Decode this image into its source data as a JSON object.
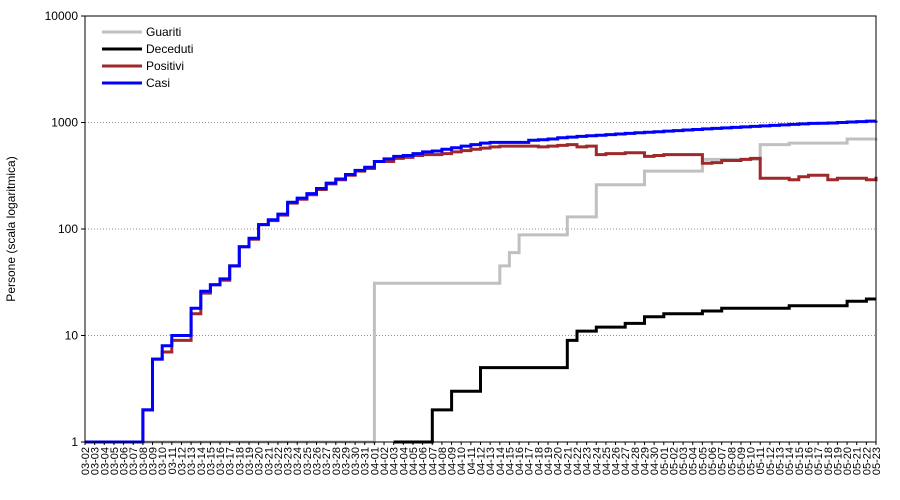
{
  "chart_data": {
    "type": "line",
    "title": "",
    "xlabel": "",
    "ylabel": "Persone (scala logaritmica)",
    "yscale": "log",
    "ylim": [
      1,
      10000
    ],
    "y_ticks": [
      "1",
      "10",
      "100",
      "1000",
      "10000"
    ],
    "grid": "horizontal dotted",
    "legend_position": "top-left",
    "x": [
      "03-02",
      "03-03",
      "03-04",
      "03-05",
      "03-06",
      "03-07",
      "03-08",
      "03-09",
      "03-10",
      "03-11",
      "03-12",
      "03-13",
      "03-14",
      "03-15",
      "03-16",
      "03-17",
      "03-18",
      "03-19",
      "03-20",
      "03-21",
      "03-22",
      "03-23",
      "03-24",
      "03-25",
      "03-26",
      "03-27",
      "03-28",
      "03-29",
      "03-30",
      "03-31",
      "04-01",
      "04-02",
      "04-03",
      "04-04",
      "04-05",
      "04-06",
      "04-07",
      "04-08",
      "04-09",
      "04-10",
      "04-11",
      "04-12",
      "04-13",
      "04-14",
      "04-15",
      "04-16",
      "04-17",
      "04-18",
      "04-19",
      "04-20",
      "04-21",
      "04-22",
      "04-23",
      "04-24",
      "04-25",
      "04-26",
      "04-27",
      "04-28",
      "04-29",
      "04-30",
      "05-01",
      "05-02",
      "05-03",
      "05-04",
      "05-05",
      "05-06",
      "05-07",
      "05-08",
      "05-09",
      "05-10",
      "05-11",
      "05-12",
      "05-13",
      "05-14",
      "05-15",
      "05-16",
      "05-17",
      "05-18",
      "05-19",
      "05-20",
      "05-21",
      "05-22",
      "05-23"
    ],
    "series": [
      {
        "name": "Guariti",
        "color": "#c0c0c0",
        "values": [
          1,
          1,
          1,
          1,
          1,
          1,
          1,
          1,
          1,
          1,
          1,
          1,
          1,
          1,
          1,
          1,
          1,
          1,
          1,
          1,
          1,
          1,
          1,
          1,
          1,
          1,
          1,
          1,
          1,
          1,
          31,
          31,
          31,
          31,
          31,
          31,
          31,
          31,
          31,
          31,
          31,
          31,
          31,
          45,
          60,
          88,
          88,
          88,
          88,
          88,
          130,
          130,
          130,
          260,
          260,
          260,
          260,
          260,
          350,
          350,
          350,
          350,
          350,
          350,
          450,
          450,
          450,
          450,
          450,
          450,
          620,
          620,
          620,
          640,
          640,
          640,
          640,
          640,
          640,
          700,
          700,
          700,
          710
        ]
      },
      {
        "name": "Deceduti",
        "color": "#000000",
        "values": [
          null,
          null,
          null,
          null,
          null,
          null,
          null,
          null,
          null,
          null,
          null,
          null,
          null,
          null,
          null,
          null,
          null,
          null,
          null,
          null,
          null,
          null,
          null,
          null,
          null,
          null,
          null,
          null,
          null,
          null,
          null,
          null,
          1,
          1,
          1,
          1,
          2,
          2,
          3,
          3,
          3,
          5,
          5,
          5,
          5,
          5,
          5,
          5,
          5,
          5,
          9,
          11,
          11,
          12,
          12,
          12,
          13,
          13,
          15,
          15,
          16,
          16,
          16,
          16,
          17,
          17,
          18,
          18,
          18,
          18,
          18,
          18,
          18,
          19,
          19,
          19,
          19,
          19,
          19,
          21,
          21,
          22,
          22
        ]
      },
      {
        "name": "Positivi",
        "color": "#a0282a",
        "values": [
          1,
          1,
          1,
          1,
          1,
          1,
          2,
          6,
          7,
          9,
          9,
          16,
          25,
          30,
          33,
          45,
          68,
          80,
          110,
          120,
          135,
          175,
          190,
          210,
          235,
          265,
          290,
          320,
          350,
          370,
          430,
          430,
          460,
          470,
          490,
          500,
          500,
          510,
          530,
          545,
          560,
          575,
          590,
          600,
          600,
          600,
          600,
          590,
          600,
          610,
          620,
          590,
          600,
          500,
          510,
          510,
          520,
          520,
          480,
          490,
          500,
          500,
          500,
          500,
          415,
          420,
          440,
          440,
          450,
          460,
          300,
          300,
          300,
          290,
          310,
          320,
          320,
          290,
          300,
          300,
          300,
          290,
          310
        ]
      },
      {
        "name": "Casi",
        "color": "#0000ff",
        "values": [
          1,
          1,
          1,
          1,
          1,
          1,
          2,
          6,
          8,
          10,
          10,
          18,
          26,
          30,
          34,
          45,
          68,
          82,
          110,
          122,
          138,
          178,
          195,
          215,
          240,
          270,
          295,
          325,
          355,
          380,
          430,
          455,
          480,
          490,
          510,
          530,
          540,
          560,
          580,
          600,
          620,
          640,
          650,
          650,
          650,
          650,
          680,
          690,
          700,
          720,
          730,
          740,
          750,
          760,
          770,
          780,
          790,
          800,
          810,
          820,
          830,
          840,
          850,
          860,
          870,
          880,
          890,
          900,
          910,
          920,
          930,
          940,
          950,
          960,
          970,
          980,
          985,
          990,
          1000,
          1010,
          1020,
          1030,
          1040
        ]
      }
    ]
  }
}
